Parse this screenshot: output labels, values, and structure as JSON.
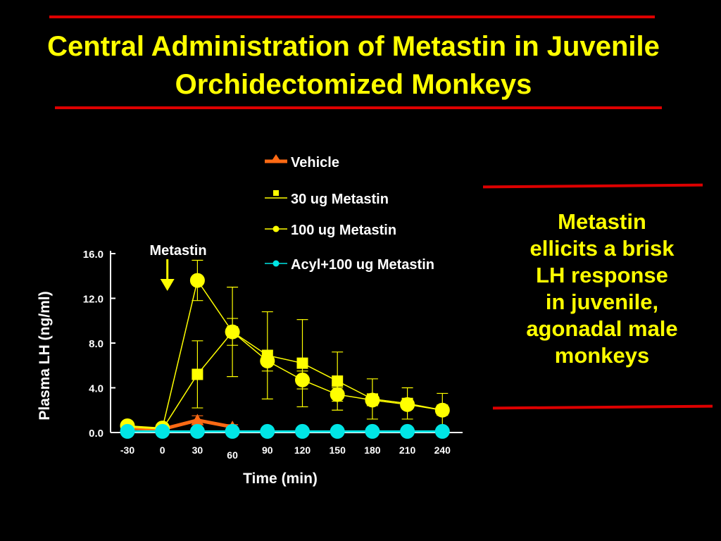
{
  "slide": {
    "title_line1": "Central Administration of Metastin in Juvenile",
    "title_line2": "Orchidectomized Monkeys",
    "side_note": [
      "Metastin",
      "ellicits a brisk",
      "LH response",
      "in juvenile,",
      "agonadal male",
      "monkeys"
    ],
    "colors": {
      "background": "#000000",
      "title": "#ffff00",
      "rules": "#dd0000",
      "axis": "#ffffff"
    }
  },
  "chart_data": {
    "type": "line",
    "title": "",
    "xlabel": "Time (min)",
    "ylabel": "Plasma LH (ng/ml)",
    "x": [
      -30,
      0,
      30,
      60,
      90,
      120,
      150,
      180,
      210,
      240
    ],
    "x_tick_labels": [
      "-30",
      "0",
      "30",
      "60",
      "90",
      "120",
      "150",
      "180",
      "210",
      "240"
    ],
    "y_ticks": [
      0.0,
      4.0,
      8.0,
      12.0,
      16.0
    ],
    "y_tick_labels": [
      "0.0",
      "4.0",
      "8.0",
      "12.0",
      "16.0"
    ],
    "ylim": [
      0,
      16
    ],
    "grid": false,
    "legend_position": "top-center",
    "annotation": {
      "text": "Metastin",
      "at_x": 0
    },
    "series": [
      {
        "name": "Vehicle",
        "color": "#ff6a14",
        "marker": "triangle",
        "values": [
          0.4,
          0.3,
          1.1,
          0.5,
          null,
          null,
          null,
          null,
          null,
          null
        ],
        "err": [
          0,
          0,
          0.4,
          0.2,
          null,
          null,
          null,
          null,
          null,
          null
        ]
      },
      {
        "name": "30 ug Metastin",
        "color": "#ffff00",
        "marker": "square",
        "values": [
          0.5,
          0.3,
          5.2,
          9.0,
          6.9,
          6.2,
          4.6,
          3.0,
          2.6,
          2.0
        ],
        "err": [
          0,
          0,
          3.0,
          4.0,
          3.9,
          3.9,
          2.6,
          1.8,
          1.4,
          1.5
        ]
      },
      {
        "name": "100 ug Metastin",
        "color": "#ffff00",
        "marker": "circle",
        "values": [
          0.6,
          0.4,
          13.6,
          9.0,
          6.4,
          4.7,
          3.4,
          2.9,
          2.5,
          2.0
        ],
        "err": [
          0,
          0,
          1.8,
          1.2,
          0.9,
          0.8,
          0.6,
          0.5,
          0.4,
          0.3
        ]
      },
      {
        "name": "Acyl+100 ug Metastin",
        "color": "#00e5e5",
        "marker": "circle",
        "values": [
          0.1,
          0.1,
          0.1,
          0.1,
          0.1,
          0.1,
          0.1,
          0.1,
          0.1,
          0.1
        ],
        "err": [
          0,
          0,
          0,
          0,
          0,
          0,
          0,
          0,
          0,
          0
        ]
      }
    ]
  }
}
